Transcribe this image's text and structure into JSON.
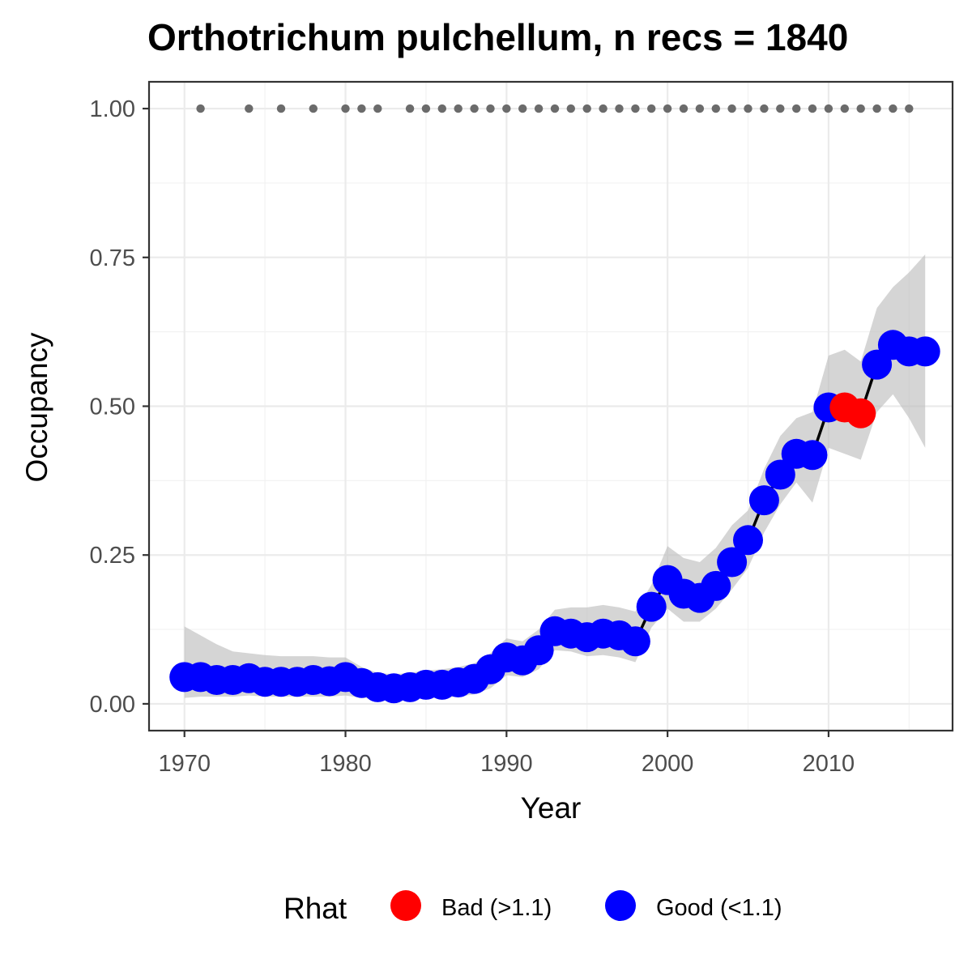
{
  "chart_data": {
    "type": "line",
    "title": "Orthotrichum pulchellum, n recs = 1840",
    "xlabel": "Year",
    "ylabel": "Occupancy",
    "xlim": [
      1967.8,
      2017.7
    ],
    "ylim": [
      -0.045,
      1.045
    ],
    "x_ticks": [
      1970,
      1980,
      1990,
      2000,
      2010
    ],
    "x_tick_labels": [
      "1970",
      "1980",
      "1990",
      "2000",
      "2010"
    ],
    "y_ticks": [
      0,
      0.25,
      0.5,
      0.75,
      1.0
    ],
    "y_tick_labels": [
      "0.00",
      "0.25",
      "0.50",
      "0.75",
      "1.00"
    ],
    "grid": true,
    "legend": {
      "title": "Rhat",
      "placement": "bottom",
      "entries": [
        {
          "label": "Bad (>1.1)",
          "color": "#ff0000"
        },
        {
          "label": "Good (<1.1)",
          "color": "#0000ff"
        }
      ]
    },
    "series": [
      {
        "x": [
          1970,
          1971,
          1972,
          1973,
          1974,
          1975,
          1976,
          1977,
          1978,
          1979,
          1980,
          1981,
          1982,
          1983,
          1984,
          1985,
          1986,
          1987,
          1988,
          1989,
          1990,
          1991,
          1992,
          1993,
          1994,
          1995,
          1996,
          1997,
          1998,
          1999,
          2000,
          2001,
          2002,
          2003,
          2004,
          2005,
          2006,
          2007,
          2008,
          2009,
          2010,
          2011,
          2012,
          2013,
          2014,
          2015,
          2016
        ],
        "y": [
          0.045,
          0.045,
          0.04,
          0.04,
          0.043,
          0.037,
          0.037,
          0.037,
          0.04,
          0.038,
          0.045,
          0.035,
          0.028,
          0.026,
          0.028,
          0.032,
          0.032,
          0.036,
          0.042,
          0.058,
          0.078,
          0.073,
          0.09,
          0.122,
          0.118,
          0.112,
          0.118,
          0.115,
          0.105,
          0.163,
          0.208,
          0.185,
          0.178,
          0.198,
          0.238,
          0.275,
          0.342,
          0.385,
          0.42,
          0.418,
          0.498,
          0.498,
          0.488,
          0.57,
          0.603,
          0.592,
          0.592
        ],
        "lower": [
          0.01,
          0.012,
          0.012,
          0.012,
          0.014,
          0.012,
          0.012,
          0.012,
          0.012,
          0.012,
          0.014,
          0.01,
          0.008,
          0.008,
          0.008,
          0.01,
          0.01,
          0.012,
          0.016,
          0.026,
          0.048,
          0.045,
          0.058,
          0.09,
          0.088,
          0.08,
          0.082,
          0.078,
          0.07,
          0.128,
          0.16,
          0.138,
          0.138,
          0.16,
          0.192,
          0.228,
          0.288,
          0.335,
          0.372,
          0.338,
          0.43,
          0.42,
          0.41,
          0.49,
          0.52,
          0.48,
          0.43
        ],
        "upper": [
          0.13,
          0.115,
          0.1,
          0.088,
          0.085,
          0.082,
          0.08,
          0.08,
          0.08,
          0.078,
          0.078,
          0.062,
          0.052,
          0.05,
          0.052,
          0.056,
          0.058,
          0.062,
          0.068,
          0.085,
          0.11,
          0.105,
          0.125,
          0.158,
          0.162,
          0.162,
          0.166,
          0.162,
          0.155,
          0.2,
          0.265,
          0.245,
          0.238,
          0.262,
          0.3,
          0.325,
          0.395,
          0.45,
          0.48,
          0.49,
          0.585,
          0.595,
          0.575,
          0.665,
          0.7,
          0.725,
          0.755
        ],
        "rhat": [
          "Good",
          "Good",
          "Good",
          "Good",
          "Good",
          "Good",
          "Good",
          "Good",
          "Good",
          "Good",
          "Good",
          "Good",
          "Good",
          "Good",
          "Good",
          "Good",
          "Good",
          "Good",
          "Good",
          "Good",
          "Good",
          "Good",
          "Good",
          "Good",
          "Good",
          "Good",
          "Good",
          "Good",
          "Good",
          "Good",
          "Good",
          "Good",
          "Good",
          "Good",
          "Good",
          "Good",
          "Good",
          "Good",
          "Good",
          "Good",
          "Good",
          "Bad",
          "Bad",
          "Good",
          "Good",
          "Good",
          "Good"
        ]
      },
      {
        "x": [
          1971,
          1974,
          1976,
          1978,
          1980,
          1981,
          1982,
          1984,
          1985,
          1986,
          1987,
          1988,
          1989,
          1990,
          1991,
          1992,
          1993,
          1994,
          1995,
          1996,
          1997,
          1998,
          1999,
          2000,
          2001,
          2002,
          2003,
          2004,
          2005,
          2006,
          2007,
          2008,
          2009,
          2010,
          2011,
          2012,
          2013,
          2014,
          2015
        ],
        "y": [
          1,
          1,
          1,
          1,
          1,
          1,
          1,
          1,
          1,
          1,
          1,
          1,
          1,
          1,
          1,
          1,
          1,
          1,
          1,
          1,
          1,
          1,
          1,
          1,
          1,
          1,
          1,
          1,
          1,
          1,
          1,
          1,
          1,
          1,
          1,
          1,
          1,
          1,
          1
        ]
      }
    ],
    "colors": {
      "good": "#0000ff",
      "bad": "#ff0000",
      "ribbon": "#bfbfbf",
      "record_points": "#6b6b6b",
      "line": "#000000"
    }
  }
}
